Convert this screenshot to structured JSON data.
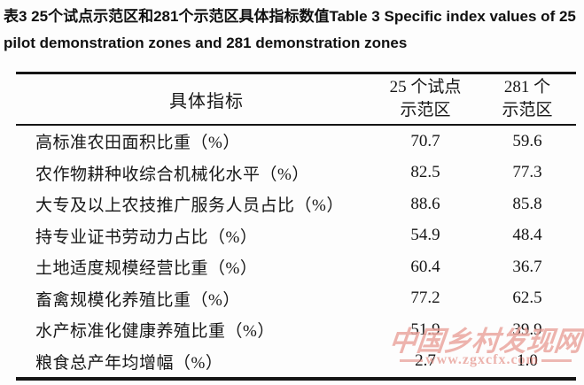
{
  "caption": {
    "text": "表3 25个试点示范区和281个示范区具体指标数值Table 3 Specific index values of 25 pilot demonstration zones and 281 demonstration zones"
  },
  "table": {
    "header": {
      "indicator": "具体指标",
      "pilot": [
        "25 个试点",
        "示范区"
      ],
      "demo": [
        "281 个",
        "示范区"
      ]
    },
    "rows": [
      {
        "label": "高标准农田面积比重（%）",
        "pilot": "70.7",
        "demo": "59.6"
      },
      {
        "label": "农作物耕种收综合机械化水平（%）",
        "pilot": "82.5",
        "demo": "77.3"
      },
      {
        "label": "大专及以上农技推广服务人员占比（%）",
        "pilot": "88.6",
        "demo": "85.8"
      },
      {
        "label": "持专业证书劳动力占比（%）",
        "pilot": "54.9",
        "demo": "48.4"
      },
      {
        "label": "土地适度规模经营比重（%）",
        "pilot": "60.4",
        "demo": "36.7"
      },
      {
        "label": "畜禽规模化养殖比重（%）",
        "pilot": "77.2",
        "demo": "62.5"
      },
      {
        "label": "水产标准化健康养殖比重（%）",
        "pilot": "51.9",
        "demo": "39.9"
      },
      {
        "label": "粮食总产年均增幅（%）",
        "pilot": "2.7",
        "demo": "1.0"
      }
    ]
  },
  "watermark": {
    "text_cn": "中国乡村发现网",
    "url": "www.zgxcfx.com",
    "color": "#de7469"
  }
}
